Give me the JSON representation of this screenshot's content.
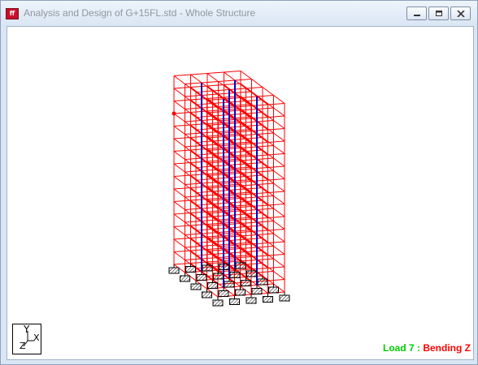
{
  "window": {
    "title": "Analysis and Design of G+15FL.std - Whole Structure",
    "icon": "staad-app-icon",
    "controls": [
      "minimize-icon",
      "maximize-icon",
      "close-icon"
    ]
  },
  "viewport": {
    "axis": {
      "y": "Y",
      "x": "X",
      "z": "Z"
    },
    "status": {
      "prefix": "Load 7 : ",
      "suffix": "Bending Z"
    }
  },
  "colors": {
    "members": "#ff0000",
    "columns_highlight": "#0000cc",
    "status_prefix": "#00cc00",
    "status_suffix": "#ff0000"
  }
}
